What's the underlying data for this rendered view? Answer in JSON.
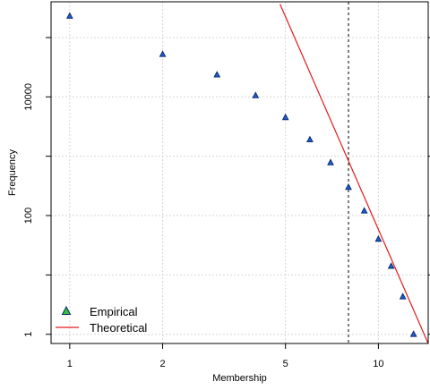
{
  "chart_data": {
    "type": "scatter",
    "xlabel": "Membership",
    "ylabel": "Frequency",
    "x_scale": "log",
    "y_scale": "log",
    "xlim": [
      0.87,
      14.5
    ],
    "ylim": [
      0.7,
      400000
    ],
    "x_ticks": [
      1,
      2,
      5,
      10
    ],
    "x_tick_labels": [
      "1",
      "2",
      "5",
      "10"
    ],
    "y_ticks": [
      1,
      10,
      100,
      1000,
      10000,
      100000
    ],
    "y_tick_labels": [
      "1",
      "",
      "100",
      "",
      "10000",
      ""
    ],
    "grid": true,
    "series": [
      {
        "name": "Empirical",
        "type": "scatter",
        "marker": "triangle",
        "color": "#1f5fd6",
        "x": [
          1,
          2,
          3,
          4,
          5,
          6,
          7,
          8,
          9,
          10,
          11,
          12,
          13
        ],
        "y": [
          230000,
          52000,
          23500,
          10500,
          4500,
          1900,
          780,
          300,
          120,
          40,
          14,
          4.3,
          1.0
        ]
      },
      {
        "name": "Theoretical",
        "type": "line",
        "color": "#e41a1c",
        "x": [
          4.8,
          14.5
        ],
        "y": [
          365000,
          0.7
        ]
      }
    ],
    "vline": {
      "x": 8,
      "style": "dotted",
      "color": "#000000"
    },
    "legend": {
      "position": "bottom-left"
    }
  }
}
